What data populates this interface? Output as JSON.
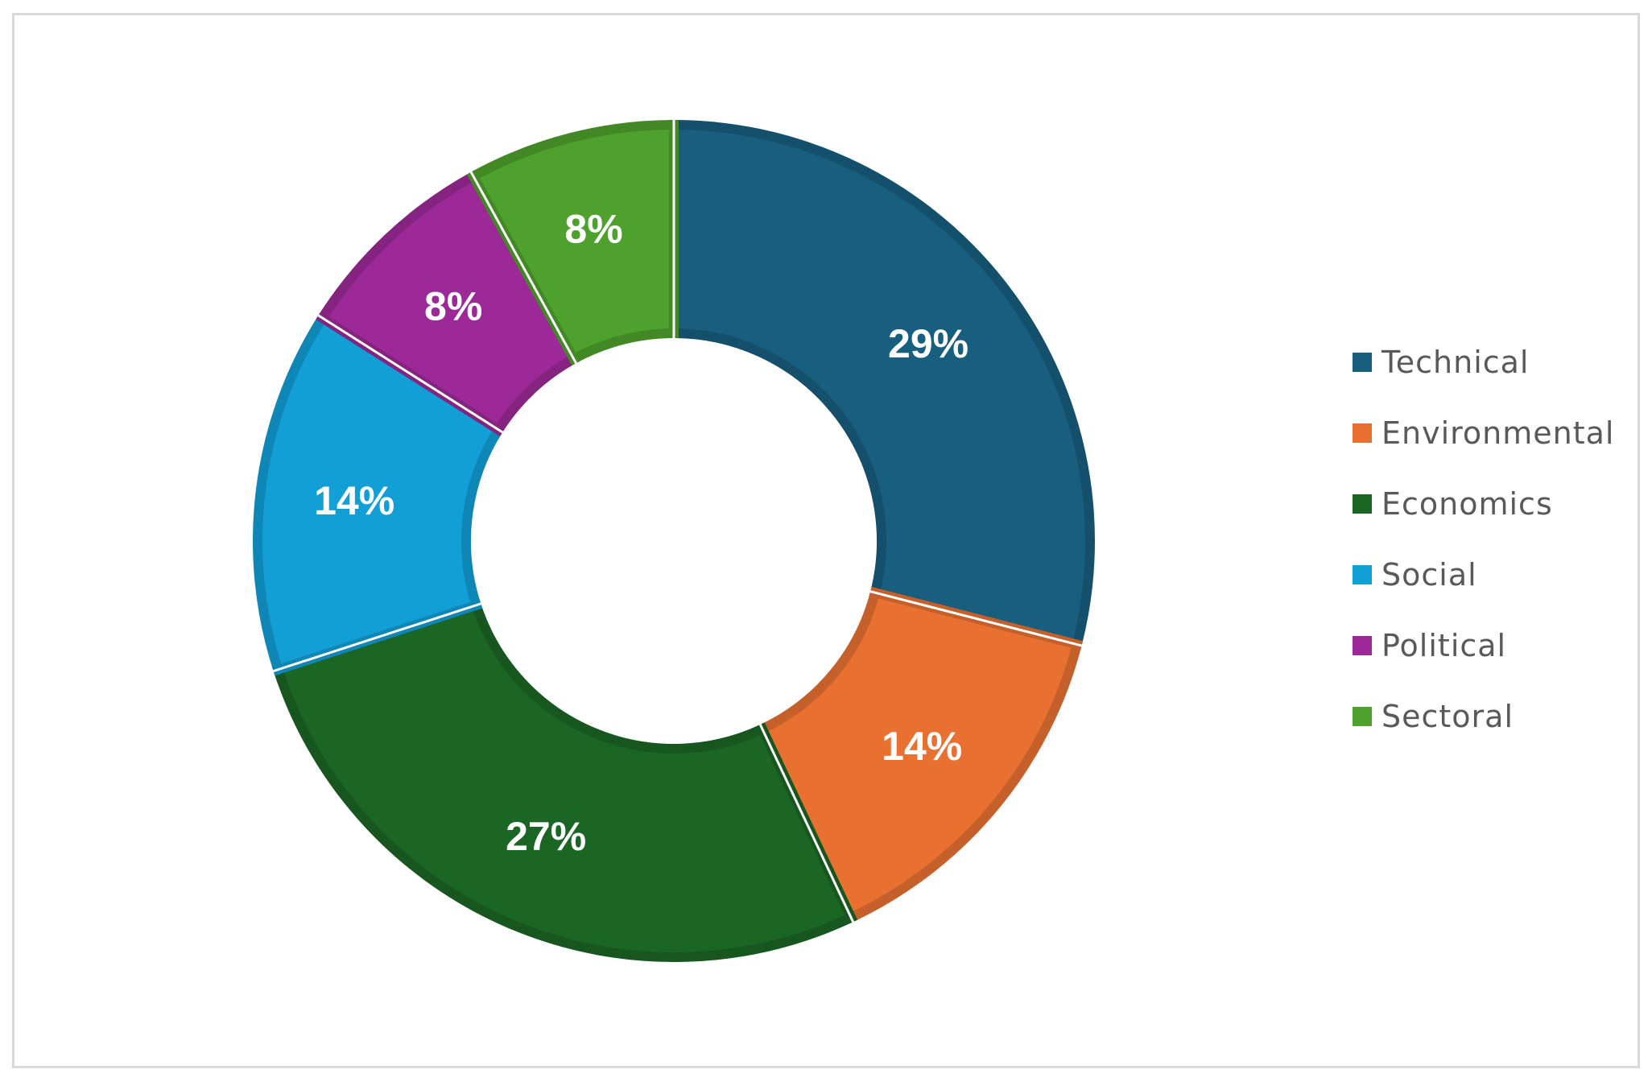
{
  "chart_data": {
    "type": "pie",
    "variant": "donut",
    "categories": [
      "Technical",
      "Environmental",
      "Economics",
      "Social",
      "Political",
      "Sectoral"
    ],
    "values": [
      29,
      14,
      27,
      14,
      8,
      8
    ],
    "labels": [
      "29%",
      "14%",
      "27%",
      "14%",
      "8%",
      "8%"
    ],
    "colors": [
      "#175E7F",
      "#E87132",
      "#1B6625",
      "#119FD6",
      "#9C2997",
      "#4EA12D"
    ],
    "legend": "right"
  }
}
